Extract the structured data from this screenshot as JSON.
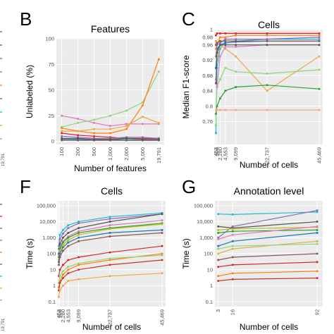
{
  "panels": {
    "B": {
      "letter": "B"
    },
    "C": {
      "letter": "C"
    },
    "F": {
      "letter": "F"
    },
    "G": {
      "letter": "G"
    }
  },
  "edge_fragments": {
    "top_left_tick": "19,791",
    "bottom_left_tick": "19,791",
    "mark_colors": [
      "#1f77b4",
      "#d62728",
      "#2ca02c",
      "#9467bd",
      "#ff7f0e",
      "#8c564b",
      "#17becf",
      "#bcbd22",
      "#e377c2"
    ]
  },
  "chart_data": [
    {
      "panel": "B",
      "type": "line",
      "title": "Features",
      "xlabel": "Number of features",
      "ylabel": "Unlabeled (%)",
      "x_scale": "categorical",
      "categories": [
        "100",
        "200",
        "500",
        "1,000",
        "2,000",
        "5,000",
        "19,791"
      ],
      "ylim": [
        -3,
        100
      ],
      "yticks": [
        0,
        25,
        50,
        75,
        100
      ],
      "ytick_labels": [
        "0",
        "25",
        "50",
        "75",
        "100"
      ],
      "grid": true,
      "series": [
        {
          "color": "#e377c2",
          "values": [
            25,
            22,
            18,
            15,
            17,
            17,
            17
          ]
        },
        {
          "color": "#90d47a",
          "values": [
            14,
            18,
            21,
            25,
            30,
            38,
            68
          ]
        },
        {
          "color": "#ff7f0e",
          "values": [
            13,
            10,
            8,
            8,
            12,
            35,
            80
          ]
        },
        {
          "color": "#e9a74a",
          "values": [
            10,
            10,
            12,
            12,
            15,
            24,
            18
          ]
        },
        {
          "color": "#d62728",
          "values": [
            8,
            6,
            5,
            4,
            3,
            3,
            3
          ]
        },
        {
          "color": "#9467bd",
          "values": [
            5,
            4,
            3,
            3,
            4,
            4,
            3
          ]
        },
        {
          "color": "#17becf",
          "values": [
            2,
            2,
            2,
            2,
            2,
            2,
            2
          ]
        },
        {
          "color": "#1f77b4",
          "values": [
            2,
            2,
            1,
            2,
            1,
            1,
            1
          ]
        },
        {
          "color": "#8c564b",
          "values": [
            1,
            1,
            1,
            1,
            1,
            1,
            1
          ]
        },
        {
          "color": "#555555",
          "values": [
            3,
            3,
            2,
            2,
            3,
            2,
            2
          ]
        }
      ]
    },
    {
      "panel": "C",
      "type": "line",
      "title": "Cells",
      "xlabel": "Number of cells",
      "ylabel": "Median F1-score",
      "x": [
        453,
        906,
        2280,
        4553,
        9099,
        22737,
        45469
      ],
      "xtick_values": [
        453,
        906,
        2280,
        4553,
        9099,
        22737,
        45469
      ],
      "xtick_labels": [
        "453",
        "906",
        "2,280",
        "4,553",
        "9,099",
        "22,737",
        "45,469"
      ],
      "xlim": [
        0,
        47000
      ],
      "ylim": [
        0.7,
        1.0
      ],
      "yticks": [
        0.76,
        0.8,
        0.84,
        0.88,
        0.92,
        0.96,
        0.98,
        1
      ],
      "ytick_labels": [
        "0.76",
        "0.8",
        "0.84",
        "0.88",
        "0.92",
        "0.96",
        "0.98",
        "1"
      ],
      "grid": true,
      "series": [
        {
          "color": "#17becf",
          "values": [
            0.73,
            0.9,
            0.95,
            0.97,
            0.97,
            0.975,
            0.975
          ]
        },
        {
          "color": "#1f77b4",
          "values": [
            0.9,
            0.95,
            0.96,
            0.965,
            0.968,
            0.97,
            0.97
          ]
        },
        {
          "color": "#d62728",
          "values": [
            0.985,
            0.99,
            0.99,
            0.99,
            0.99,
            0.99,
            0.99
          ]
        },
        {
          "color": "#ff7f0e",
          "values": [
            0.95,
            0.96,
            0.98,
            0.98,
            0.985,
            0.985,
            0.985
          ]
        },
        {
          "color": "#e9a74a",
          "values": [
            0.97,
            0.92,
            0.96,
            0.95,
            0.93,
            0.84,
            0.93
          ]
        },
        {
          "color": "#90d47a",
          "values": [
            0.75,
            0.85,
            0.87,
            0.9,
            0.89,
            0.885,
            0.895
          ]
        },
        {
          "color": "#2ca02c",
          "values": [
            0.78,
            0.8,
            0.82,
            0.84,
            0.85,
            0.855,
            0.845
          ]
        },
        {
          "color": "#9467bd",
          "values": [
            0.93,
            0.96,
            0.965,
            0.975,
            0.975,
            0.975,
            0.98
          ]
        },
        {
          "color": "#e377c2",
          "values": [
            0.87,
            0.85,
            0.93,
            0.955,
            0.955,
            0.96,
            0.96
          ]
        },
        {
          "color": "#f4a582",
          "values": [
            0.79,
            0.79,
            0.79,
            0.79,
            0.79,
            0.79,
            0.79
          ]
        },
        {
          "color": "#8c564b",
          "values": [
            0.96,
            0.965,
            0.97,
            0.97,
            0.97,
            0.97,
            0.97
          ]
        },
        {
          "color": "#555555",
          "values": [
            0.86,
            0.94,
            0.96,
            0.96,
            0.96,
            0.96,
            0.96
          ]
        }
      ]
    },
    {
      "panel": "F",
      "type": "line",
      "title": "Cells",
      "xlabel": "Number of cells",
      "ylabel": "Time (s)",
      "y_scale": "log",
      "x": [
        453,
        906,
        2280,
        4553,
        9099,
        22737,
        45469
      ],
      "xtick_values": [
        453,
        906,
        2280,
        4553,
        9099,
        22737,
        45469
      ],
      "xtick_labels": [
        "453",
        "906",
        "2,280",
        "4,553",
        "9,099",
        "22,737",
        "45,469"
      ],
      "xlim": [
        0,
        47000
      ],
      "ylim": [
        0.05,
        200000
      ],
      "yticks": [
        0.1,
        1,
        10,
        100,
        1000,
        10000,
        100000
      ],
      "ytick_labels": [
        "0.1",
        "1",
        "10",
        "100",
        "1,000",
        "10,000",
        "100,000"
      ],
      "grid": true,
      "series": [
        {
          "color": "#17becf",
          "values": [
            300,
            1500,
            3000,
            6000,
            10000,
            20000,
            35000
          ]
        },
        {
          "color": "#9467bd",
          "values": [
            200,
            800,
            1800,
            4000,
            8000,
            15000,
            30000
          ]
        },
        {
          "color": "#555555",
          "values": [
            100,
            400,
            1000,
            2000,
            4000,
            10000,
            30000
          ]
        },
        {
          "color": "#e377c2",
          "values": [
            80,
            250,
            600,
            1200,
            2500,
            6000,
            12000
          ]
        },
        {
          "color": "#2ca02c",
          "values": [
            60,
            200,
            500,
            1000,
            2000,
            4000,
            8000
          ]
        },
        {
          "color": "#bcbd22",
          "values": [
            40,
            150,
            350,
            700,
            1500,
            3500,
            7000
          ]
        },
        {
          "color": "#1f77b4",
          "values": [
            30,
            100,
            250,
            500,
            1000,
            2000,
            3000
          ]
        },
        {
          "color": "#8c564b",
          "values": [
            20,
            60,
            150,
            300,
            600,
            1200,
            2000
          ]
        },
        {
          "color": "#d62728",
          "values": [
            4,
            10,
            20,
            40,
            60,
            120,
            300
          ]
        },
        {
          "color": "#ff7f0e",
          "values": [
            0.8,
            2,
            5,
            10,
            20,
            40,
            100
          ]
        },
        {
          "color": "#90d47a",
          "values": [
            1.5,
            4,
            8,
            15,
            25,
            50,
            80
          ]
        },
        {
          "color": "#c0392b",
          "values": [
            0.5,
            1.5,
            3,
            6,
            10,
            20,
            40
          ]
        },
        {
          "color": "#e9a74a",
          "values": [
            0.2,
            0.5,
            1,
            2,
            2.5,
            4,
            6
          ]
        }
      ]
    },
    {
      "panel": "G",
      "type": "line",
      "title": "Annotation level",
      "xlabel": "Number of cells",
      "ylabel": "Time (s)",
      "y_scale": "log",
      "x": [
        3,
        16,
        92
      ],
      "xtick_values": [
        3,
        16,
        92
      ],
      "xtick_labels": [
        "3",
        "16",
        "92"
      ],
      "xlim": [
        0,
        97
      ],
      "ylim": [
        0.05,
        200000
      ],
      "yticks": [
        0.1,
        1,
        10,
        100,
        1000,
        10000,
        100000
      ],
      "ytick_labels": [
        "0.1",
        "1",
        "10",
        "100",
        "1,000",
        "10,000",
        "100,000"
      ],
      "grid": true,
      "series": [
        {
          "color": "#17becf",
          "values": [
            30000,
            28000,
            40000
          ]
        },
        {
          "color": "#9467bd",
          "values": [
            1000,
            5000,
            50000
          ]
        },
        {
          "color": "#555555",
          "values": [
            5000,
            4000,
            10000
          ]
        },
        {
          "color": "#bcbd22",
          "values": [
            3000,
            3500,
            4500
          ]
        },
        {
          "color": "#2ca02c",
          "values": [
            2000,
            2500,
            3000
          ]
        },
        {
          "color": "#e377c2",
          "values": [
            800,
            1500,
            5000
          ]
        },
        {
          "color": "#1f77b4",
          "values": [
            300,
            600,
            2000
          ]
        },
        {
          "color": "#e9a74a",
          "values": [
            100,
            200,
            600
          ]
        },
        {
          "color": "#90d47a",
          "values": [
            200,
            300,
            400
          ]
        },
        {
          "color": "#8c564b",
          "values": [
            40,
            60,
            100
          ]
        },
        {
          "color": "#d62728",
          "values": [
            15,
            20,
            30
          ]
        },
        {
          "color": "#ff7f0e",
          "values": [
            4,
            6,
            8
          ]
        },
        {
          "color": "#c0392b",
          "values": [
            2,
            2.5,
            3
          ]
        }
      ]
    }
  ]
}
